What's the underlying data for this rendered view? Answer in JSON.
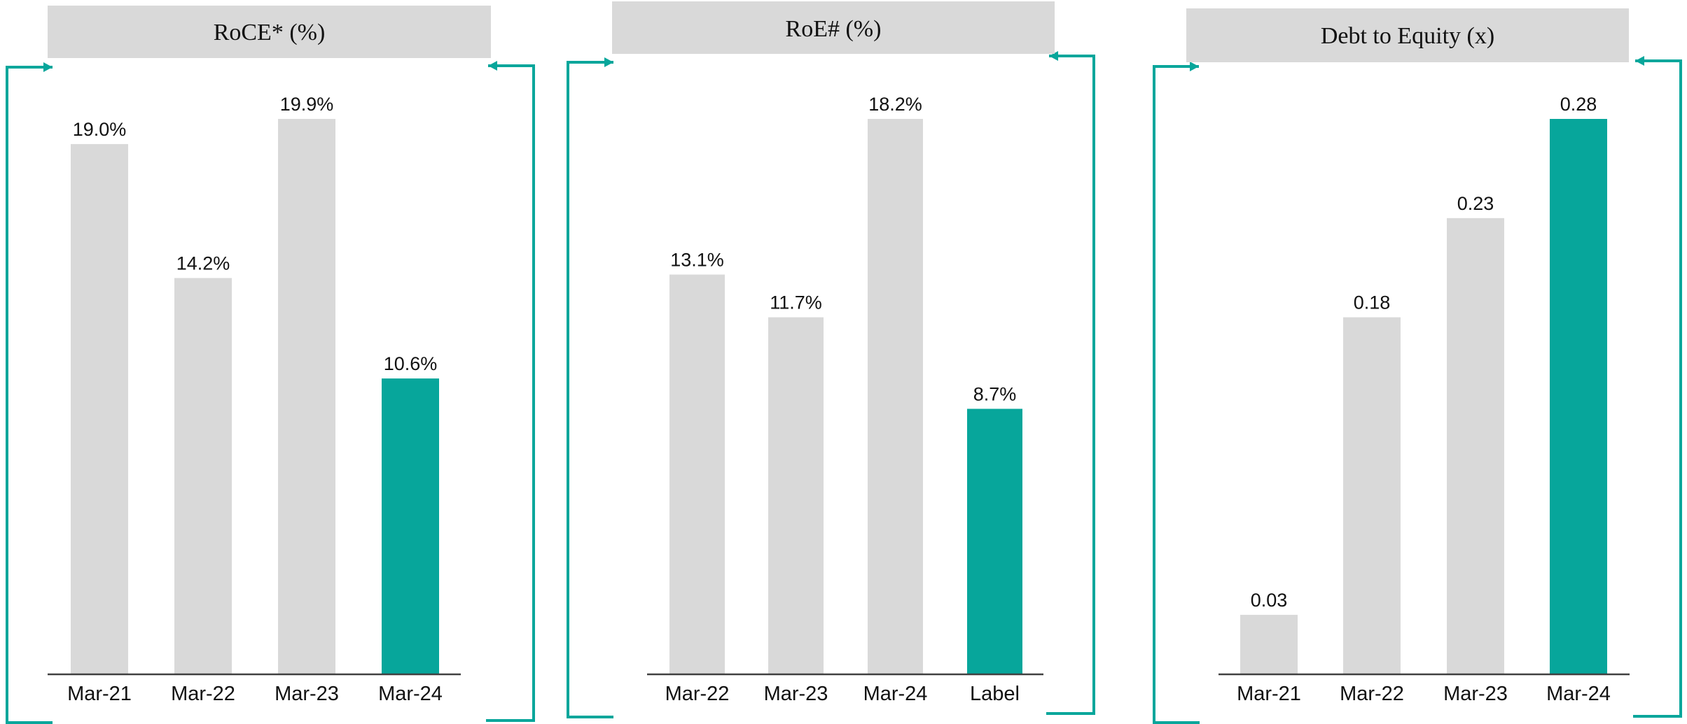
{
  "colors": {
    "accent": "#07A69B",
    "bar_gray": "#D9D9D9",
    "title_bg": "#D9D9D9",
    "axis": "#404040"
  },
  "chart_data": [
    {
      "type": "bar",
      "title": "RoCE* (%)",
      "categories": [
        "Mar-21",
        "Mar-22",
        "Mar-23",
        "Mar-24"
      ],
      "values": [
        19.0,
        14.2,
        19.9,
        10.6
      ],
      "labels": [
        "19.0%",
        "14.2%",
        "19.9%",
        "10.6%"
      ],
      "highlight_index": 3,
      "ylim": [
        0,
        19.9
      ]
    },
    {
      "type": "bar",
      "title": "RoE# (%)",
      "categories": [
        "Mar-22",
        "Mar-23",
        "Mar-24",
        "Label"
      ],
      "values": [
        13.1,
        11.7,
        18.2,
        8.7
      ],
      "labels": [
        "13.1%",
        "11.7%",
        "18.2%",
        "8.7%"
      ],
      "highlight_index": 3,
      "ylim": [
        0,
        18.2
      ]
    },
    {
      "type": "bar",
      "title": "Debt to Equity (x)",
      "categories": [
        "Mar-21",
        "Mar-22",
        "Mar-23",
        "Mar-24"
      ],
      "values": [
        0.03,
        0.18,
        0.23,
        0.28
      ],
      "labels": [
        "0.03",
        "0.18",
        "0.23",
        "0.28"
      ],
      "highlight_index": 3,
      "ylim": [
        0,
        0.28
      ]
    }
  ]
}
